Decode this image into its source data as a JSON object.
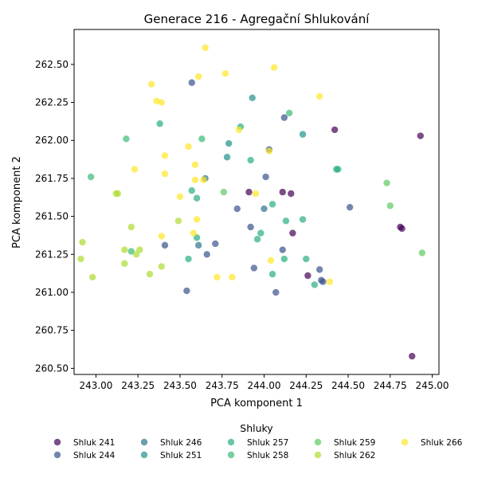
{
  "chart_data": {
    "type": "scatter",
    "title": "Generace 216 - Agregační Shlukování",
    "xlabel": "PCA komponent 1",
    "ylabel": "PCA komponent 2",
    "xlim": [
      242.87,
      245.04
    ],
    "ylim": [
      260.46,
      262.73
    ],
    "xticks": [
      243.0,
      243.25,
      243.5,
      243.75,
      244.0,
      244.25,
      244.5,
      244.75,
      245.0
    ],
    "xtick_labels": [
      "243.00",
      "243.25",
      "243.50",
      "243.75",
      "244.00",
      "244.25",
      "244.50",
      "244.75",
      "245.00"
    ],
    "yticks": [
      260.5,
      260.75,
      261.0,
      261.25,
      261.5,
      261.75,
      262.0,
      262.25,
      262.5
    ],
    "ytick_labels": [
      "260.50",
      "260.75",
      "261.00",
      "261.25",
      "261.50",
      "261.75",
      "262.00",
      "262.25",
      "262.50"
    ],
    "grid": false,
    "legend": {
      "title": "Shluky",
      "placement": "bottom",
      "columns": 5
    },
    "series": [
      {
        "name": "Shluk 241",
        "color": "#440154",
        "points": [
          [
            244.42,
            262.07
          ],
          [
            244.93,
            262.03
          ],
          [
            243.91,
            261.66
          ],
          [
            244.11,
            261.66
          ],
          [
            244.16,
            261.65
          ],
          [
            244.17,
            261.39
          ],
          [
            244.81,
            261.43
          ],
          [
            244.82,
            261.42
          ],
          [
            244.26,
            261.11
          ],
          [
            244.88,
            260.58
          ]
        ]
      },
      {
        "name": "Shluk 244",
        "color": "#3b528b",
        "points": [
          [
            243.57,
            262.38
          ],
          [
            244.12,
            262.15
          ],
          [
            244.03,
            261.94
          ],
          [
            244.01,
            261.76
          ],
          [
            244.51,
            261.56
          ],
          [
            243.84,
            261.55
          ],
          [
            243.92,
            261.43
          ],
          [
            243.41,
            261.31
          ],
          [
            243.71,
            261.32
          ],
          [
            244.11,
            261.28
          ],
          [
            243.66,
            261.25
          ],
          [
            244.33,
            261.15
          ],
          [
            244.34,
            261.08
          ],
          [
            244.35,
            261.07
          ],
          [
            243.94,
            261.16
          ],
          [
            243.54,
            261.01
          ],
          [
            244.07,
            261.0
          ]
        ]
      },
      {
        "name": "Shluk 246",
        "color": "#2c728e",
        "points": [
          [
            243.65,
            261.75
          ],
          [
            244.0,
            261.55
          ],
          [
            243.61,
            261.31
          ]
        ]
      },
      {
        "name": "Shluk 251",
        "color": "#21918c",
        "points": [
          [
            243.93,
            262.28
          ],
          [
            244.23,
            262.04
          ],
          [
            243.79,
            261.98
          ],
          [
            243.78,
            261.89
          ]
        ]
      },
      {
        "name": "Shluk 257",
        "color": "#28ae80",
        "points": [
          [
            243.38,
            262.11
          ],
          [
            243.86,
            262.09
          ],
          [
            243.92,
            261.87
          ],
          [
            244.43,
            261.81
          ],
          [
            244.44,
            261.81
          ],
          [
            243.57,
            261.67
          ],
          [
            243.6,
            261.62
          ],
          [
            244.05,
            261.58
          ],
          [
            244.23,
            261.48
          ],
          [
            244.13,
            261.47
          ],
          [
            243.98,
            261.39
          ],
          [
            243.6,
            261.36
          ],
          [
            243.96,
            261.35
          ],
          [
            243.55,
            261.22
          ],
          [
            244.12,
            261.22
          ],
          [
            244.25,
            261.22
          ],
          [
            244.05,
            261.12
          ],
          [
            244.3,
            261.05
          ]
        ]
      },
      {
        "name": "Shluk 258",
        "color": "#3bbb75",
        "points": [
          [
            244.15,
            262.18
          ],
          [
            243.18,
            262.01
          ],
          [
            243.63,
            262.01
          ],
          [
            242.97,
            261.76
          ],
          [
            243.21,
            261.27
          ]
        ]
      },
      {
        "name": "Shluk 259",
        "color": "#5ec962",
        "points": [
          [
            244.73,
            261.72
          ],
          [
            244.75,
            261.57
          ],
          [
            244.94,
            261.26
          ],
          [
            243.76,
            261.66
          ]
        ]
      },
      {
        "name": "Shluk 262",
        "color": "#addc30",
        "points": [
          [
            243.12,
            261.65
          ],
          [
            243.13,
            261.65
          ],
          [
            243.21,
            261.43
          ],
          [
            243.49,
            261.47
          ],
          [
            242.92,
            261.33
          ],
          [
            243.17,
            261.28
          ],
          [
            243.26,
            261.28
          ],
          [
            243.24,
            261.25
          ],
          [
            242.91,
            261.22
          ],
          [
            243.17,
            261.19
          ],
          [
            243.39,
            261.17
          ],
          [
            243.32,
            261.12
          ],
          [
            242.98,
            261.1
          ]
        ]
      },
      {
        "name": "Shluk 266",
        "color": "#fde725",
        "points": [
          [
            243.65,
            262.61
          ],
          [
            244.06,
            262.48
          ],
          [
            243.61,
            262.42
          ],
          [
            243.77,
            262.44
          ],
          [
            243.33,
            262.37
          ],
          [
            243.36,
            262.26
          ],
          [
            243.39,
            262.25
          ],
          [
            244.33,
            262.29
          ],
          [
            243.85,
            262.07
          ],
          [
            243.55,
            261.96
          ],
          [
            244.03,
            261.93
          ],
          [
            243.41,
            261.9
          ],
          [
            243.59,
            261.84
          ],
          [
            243.23,
            261.81
          ],
          [
            243.41,
            261.78
          ],
          [
            243.59,
            261.74
          ],
          [
            243.64,
            261.74
          ],
          [
            243.95,
            261.65
          ],
          [
            243.5,
            261.63
          ],
          [
            243.6,
            261.48
          ],
          [
            243.58,
            261.39
          ],
          [
            243.39,
            261.37
          ],
          [
            244.04,
            261.21
          ],
          [
            243.72,
            261.1
          ],
          [
            243.81,
            261.1
          ],
          [
            244.39,
            261.07
          ]
        ]
      }
    ]
  }
}
